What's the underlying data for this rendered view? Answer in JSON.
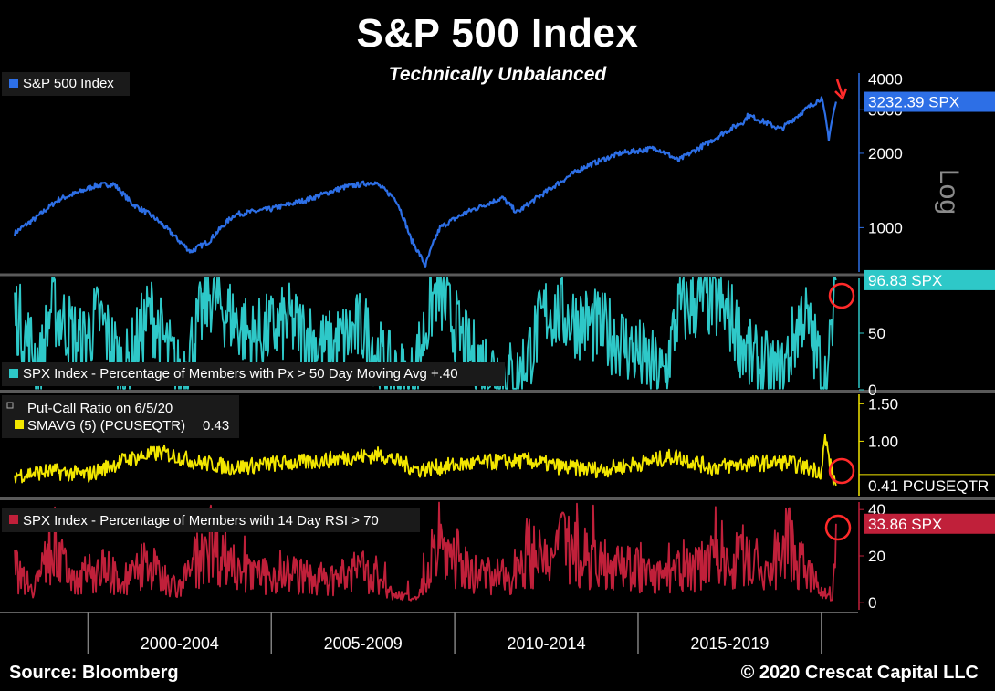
{
  "header": {
    "title": "S&P 500 Index",
    "subtitle": "Technically Unbalanced"
  },
  "footer": {
    "source": "Source: Bloomberg",
    "copyright": "© 2020 Crescat Capital LLC"
  },
  "colors": {
    "background": "#000000",
    "spx": "#2d6fe6",
    "breadth50": "#2ec8c8",
    "putcall": "#f2e600",
    "rsi": "#c0203a",
    "callout": "#ff2a2a",
    "axis": "#7f7f7f"
  },
  "chart_data": [
    {
      "id": "spx",
      "type": "line",
      "legend": "S&P 500 Index",
      "scale": "log",
      "scale_label": "Log",
      "yticks": [
        1000,
        2000,
        3000,
        4000
      ],
      "ylim": [
        650,
        4300
      ],
      "last_value_label": "3232.39 SPX",
      "last_value": 3232.39,
      "x": [
        1998.0,
        1998.6,
        1999.2,
        1999.8,
        2000.2,
        2000.7,
        2001.2,
        2001.8,
        2002.5,
        2002.8,
        2003.3,
        2004.0,
        2005.0,
        2006.0,
        2007.0,
        2007.8,
        2008.4,
        2008.8,
        2009.2,
        2009.6,
        2010.3,
        2011.3,
        2011.7,
        2012.5,
        2013.5,
        2014.5,
        2015.5,
        2016.1,
        2016.9,
        2017.9,
        2018.0,
        2018.9,
        2019.5,
        2020.0,
        2020.2,
        2020.4
      ],
      "values": [
        950,
        1100,
        1300,
        1400,
        1480,
        1500,
        1250,
        1100,
        880,
        800,
        880,
        1130,
        1190,
        1300,
        1460,
        1530,
        1300,
        900,
        700,
        1000,
        1150,
        1320,
        1150,
        1400,
        1750,
        2000,
        2100,
        1870,
        2200,
        2700,
        2850,
        2500,
        2950,
        3350,
        2300,
        3232
      ]
    },
    {
      "id": "breadth50",
      "type": "line",
      "legend": "SPX Index - Percentage of Members with Px > 50 Day Moving Avg",
      "legend_value": "+.40",
      "yticks": [
        0,
        50
      ],
      "ylim": [
        0,
        100
      ],
      "last_value_label": "96.83 SPX",
      "last_value": 96.83,
      "x": [
        1998.0,
        1998.7,
        1999.0,
        1999.8,
        2000.3,
        2001.0,
        2001.7,
        2002.5,
        2003.3,
        2004.5,
        2005.5,
        2006.5,
        2007.5,
        2008.1,
        2008.8,
        2009.5,
        2010.4,
        2011.7,
        2012.5,
        2013.5,
        2014.5,
        2015.7,
        2016.1,
        2016.9,
        2017.5,
        2018.1,
        2018.9,
        2019.5,
        2020.15,
        2020.4
      ],
      "values": [
        70,
        20,
        75,
        40,
        65,
        15,
        70,
        10,
        85,
        45,
        60,
        35,
        55,
        20,
        5,
        90,
        30,
        8,
        70,
        60,
        45,
        10,
        70,
        80,
        65,
        25,
        10,
        70,
        2,
        96.83
      ]
    },
    {
      "id": "putcall",
      "type": "line",
      "legend_title": "Put-Call Ratio on 6/5/20",
      "legend": "SMAVG (5) (PCUSEQTR)",
      "legend_value": "0.43",
      "yticks": [
        1.0,
        1.5
      ],
      "ytick_labels": [
        "1.00",
        "1.50"
      ],
      "ylim": [
        0.25,
        1.65
      ],
      "last_value_label": "0.41 PCUSEQTR",
      "last_value": 0.41,
      "x": [
        1998.0,
        1999.0,
        2000.0,
        2001.0,
        2002.0,
        2003.0,
        2004.0,
        2005.0,
        2006.0,
        2007.0,
        2008.0,
        2009.0,
        2010.0,
        2011.0,
        2012.0,
        2013.0,
        2014.0,
        2015.0,
        2016.0,
        2017.0,
        2018.0,
        2019.0,
        2020.0,
        2020.1,
        2020.3,
        2020.4
      ],
      "values": [
        0.55,
        0.6,
        0.55,
        0.75,
        0.85,
        0.72,
        0.65,
        0.7,
        0.72,
        0.78,
        0.82,
        0.62,
        0.68,
        0.72,
        0.74,
        0.65,
        0.62,
        0.7,
        0.8,
        0.65,
        0.7,
        0.72,
        0.6,
        1.05,
        0.55,
        0.41
      ]
    },
    {
      "id": "rsi70",
      "type": "line",
      "legend": "SPX Index - Percentage of Members with 14 Day RSI > 70",
      "yticks": [
        0,
        20,
        40
      ],
      "ylim": [
        -4,
        44
      ],
      "last_value_label": "33.86 SPX",
      "last_value": 33.86,
      "x": [
        1998.0,
        1998.5,
        1999.0,
        1999.6,
        2000.5,
        2001.0,
        2001.5,
        2002.5,
        2003.3,
        2003.7,
        2004.5,
        2005.5,
        2006.5,
        2007.5,
        2008.3,
        2009.0,
        2009.5,
        2010.5,
        2011.5,
        2012.0,
        2012.5,
        2013.0,
        2013.6,
        2014.5,
        2015.5,
        2016.6,
        2017.0,
        2017.6,
        2018.0,
        2018.5,
        2019.0,
        2019.5,
        2020.0,
        2020.3,
        2020.4
      ],
      "values": [
        20,
        10,
        30,
        15,
        20,
        10,
        25,
        8,
        40,
        30,
        15,
        18,
        12,
        20,
        5,
        2,
        38,
        18,
        15,
        32,
        22,
        35,
        28,
        25,
        15,
        20,
        37,
        25,
        30,
        15,
        39,
        20,
        8,
        1,
        33.86
      ]
    }
  ],
  "xaxis": {
    "range": [
      1997.6,
      2021.0
    ],
    "tick_years": [
      2000.0,
      2005.0,
      2010.0,
      2015.0,
      2020.0
    ],
    "labels": [
      {
        "text": "2000-2004",
        "from": 2000.0,
        "to": 2005.0
      },
      {
        "text": "2005-2009",
        "from": 2005.0,
        "to": 2010.0
      },
      {
        "text": "2010-2014",
        "from": 2010.0,
        "to": 2015.0
      },
      {
        "text": "2015-2019",
        "from": 2015.0,
        "to": 2020.0
      }
    ]
  }
}
